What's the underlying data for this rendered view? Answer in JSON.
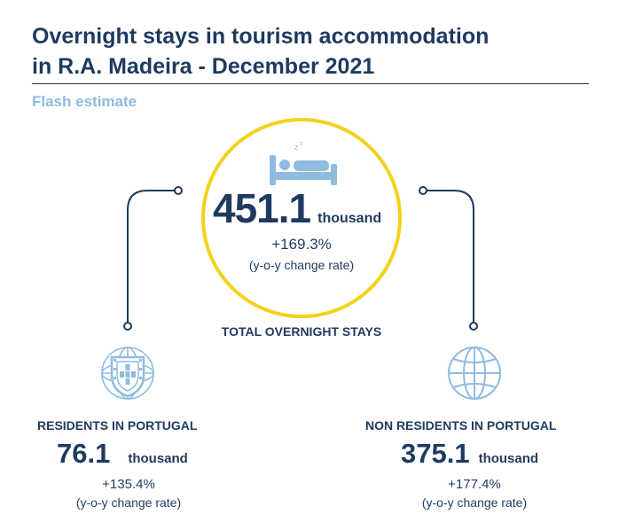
{
  "header": {
    "title_line1": "Overnight stays in tourism accommodation",
    "title_line2": "in R.A. Madeira - December 2021",
    "subtitle": "Flash estimate"
  },
  "total": {
    "value": "451.1",
    "unit": "thousand",
    "rate": "+169.3%",
    "rate_note": "(y-o-y change rate)",
    "label": "TOTAL OVERNIGHT STAYS",
    "icon": "bed-icon"
  },
  "residents": {
    "label": "RESIDENTS IN PORTUGAL",
    "value": "76.1",
    "unit": "thousand",
    "rate": "+135.4%",
    "rate_note": "(y-o-y change rate)",
    "icon": "portugal-shield-icon"
  },
  "non_residents": {
    "label": "NON RESIDENTS IN PORTUGAL",
    "value": "375.1",
    "unit": "thousand",
    "rate": "+177.4%",
    "rate_note": "(y-o-y change rate)",
    "icon": "globe-icon"
  },
  "colors": {
    "navy": "#1f3a5f",
    "accent_yellow": "#f2d21c",
    "light_blue": "#8fbbe0"
  }
}
